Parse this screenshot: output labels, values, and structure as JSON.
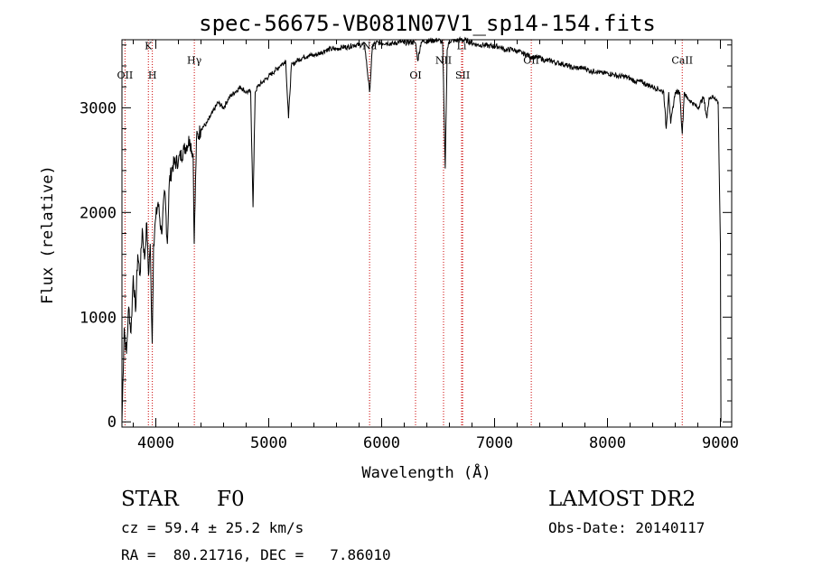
{
  "chart_data": {
    "type": "line",
    "title": "spec-56675-VB081N07V1_sp14-154.fits",
    "xlabel": "Wavelength (Å)",
    "ylabel": "Flux (relative)",
    "xlim": [
      3700,
      9100
    ],
    "ylim": [
      -50,
      3650
    ],
    "xticks": [
      4000,
      5000,
      6000,
      7000,
      8000,
      9000
    ],
    "xtick_labels": [
      "4000",
      "5000",
      "6000",
      "7000",
      "8000",
      "9000"
    ],
    "yticks": [
      0,
      1000,
      2000,
      3000
    ],
    "ytick_labels": [
      "0",
      "1000",
      "2000",
      "3000"
    ],
    "grid": false,
    "series": [
      {
        "x": [
          3700,
          3720,
          3740,
          3760,
          3780,
          3800,
          3820,
          3840,
          3860,
          3880,
          3900,
          3920,
          3935,
          3950,
          3968,
          3980,
          4000,
          4020,
          4050,
          4080,
          4102,
          4120,
          4150,
          4200,
          4250,
          4300,
          4330,
          4340,
          4360,
          4400,
          4450,
          4500,
          4550,
          4600,
          4650,
          4700,
          4750,
          4800,
          4840,
          4861,
          4880,
          4900,
          4950,
          5000,
          5050,
          5100,
          5150,
          5175,
          5200,
          5250,
          5300,
          5350,
          5400,
          5450,
          5500,
          5550,
          5600,
          5650,
          5700,
          5750,
          5800,
          5850,
          5893,
          5920,
          5950,
          6000,
          6050,
          6100,
          6150,
          6200,
          6250,
          6300,
          6320,
          6350,
          6400,
          6450,
          6500,
          6540,
          6563,
          6580,
          6600,
          6650,
          6700,
          6750,
          6800,
          6850,
          6900,
          6950,
          7000,
          7050,
          7100,
          7150,
          7200,
          7250,
          7300,
          7350,
          7400,
          7450,
          7500,
          7550,
          7600,
          7650,
          7700,
          7750,
          7800,
          7850,
          7900,
          7950,
          8000,
          8050,
          8100,
          8150,
          8200,
          8250,
          8300,
          8350,
          8400,
          8450,
          8498,
          8520,
          8542,
          8560,
          8600,
          8640,
          8662,
          8680,
          8700,
          8750,
          8800,
          8850,
          8880,
          8900,
          8950,
          8980,
          9000,
          9005
        ],
        "y": [
          0,
          900,
          650,
          1100,
          850,
          1400,
          1050,
          1600,
          1400,
          1850,
          1550,
          1900,
          1400,
          1700,
          750,
          1700,
          1950,
          2100,
          1800,
          2200,
          1700,
          2300,
          2450,
          2500,
          2600,
          2700,
          2550,
          1700,
          2700,
          2800,
          2850,
          2950,
          3050,
          3000,
          3100,
          3150,
          3200,
          3150,
          3150,
          2050,
          3150,
          3200,
          3250,
          3300,
          3350,
          3400,
          3450,
          2900,
          3400,
          3450,
          3480,
          3500,
          3500,
          3520,
          3550,
          3560,
          3560,
          3580,
          3580,
          3600,
          3600,
          3600,
          3150,
          3600,
          3620,
          3620,
          3620,
          3610,
          3630,
          3620,
          3630,
          3620,
          3450,
          3630,
          3640,
          3640,
          3650,
          3620,
          2420,
          3550,
          3640,
          3640,
          3650,
          3640,
          3620,
          3600,
          3600,
          3590,
          3590,
          3580,
          3550,
          3560,
          3540,
          3520,
          3500,
          3480,
          3480,
          3450,
          3450,
          3430,
          3420,
          3400,
          3380,
          3380,
          3380,
          3350,
          3350,
          3330,
          3330,
          3320,
          3300,
          3300,
          3280,
          3250,
          3250,
          3220,
          3200,
          3180,
          3150,
          2800,
          3150,
          2850,
          3150,
          3150,
          2750,
          3150,
          3100,
          3050,
          3000,
          3100,
          2900,
          3100,
          3100,
          3050,
          1700,
          0
        ]
      }
    ],
    "line_markers": [
      {
        "label": "OII",
        "x": 3727,
        "y": 3280
      },
      {
        "label": "K",
        "x": 3934,
        "y": 3560
      },
      {
        "label": "H",
        "x": 3969,
        "y": 3280
      },
      {
        "label": "Hγ",
        "x": 4341,
        "y": 3420
      },
      {
        "label": "Na",
        "x": 5893,
        "y": 3560
      },
      {
        "label": "OI",
        "x": 6300,
        "y": 3280
      },
      {
        "label": "NII",
        "x": 6548,
        "y": 3420
      },
      {
        "label": "Li",
        "x": 6708,
        "y": 3560
      },
      {
        "label": "SII",
        "x": 6717,
        "y": 3280
      },
      {
        "label": "OII",
        "x": 7325,
        "y": 3420
      },
      {
        "label": "CaII",
        "x": 8662,
        "y": 3420
      }
    ]
  },
  "info": {
    "object_type": "STAR",
    "subclass": "F0",
    "survey": "LAMOST DR2",
    "redshift": "cz = 59.4 ± 25.2 km/s",
    "obs_date": "Obs-Date: 20140117",
    "coords": "RA =  80.21716, DEC =   7.86010"
  },
  "colors": {
    "line": "#000000",
    "marker": "#cc0000",
    "axis": "#000000"
  }
}
